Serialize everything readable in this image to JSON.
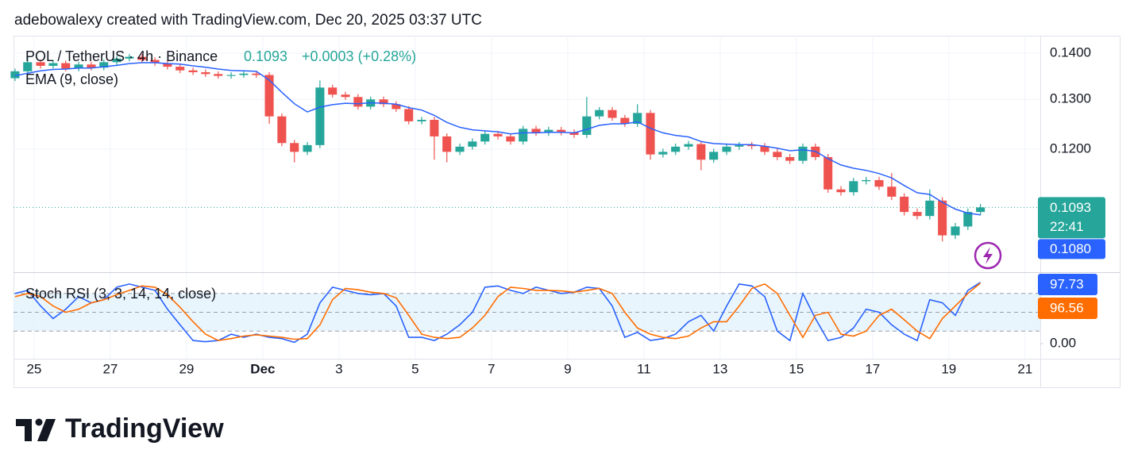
{
  "header": "adebowalexy created with TradingView.com, Dec 20, 2025 03:37 UTC",
  "footer_logo": "TradingView",
  "chart_data": [
    {
      "type": "candlestick",
      "title": "POL / TetherUS · 4h · Binance",
      "change": "+0.0003 (+0.28%)",
      "countdown": "22:41",
      "log_scale": true,
      "grid": true,
      "up_color": "#26a69a",
      "down_color": "#ef5350",
      "xlim": [
        -0.54,
        26.4
      ],
      "xticks": [
        {
          "value": 0,
          "label": "25"
        },
        {
          "value": 2,
          "label": "27"
        },
        {
          "value": 4,
          "label": "29"
        },
        {
          "value": 6,
          "label": "Dec"
        },
        {
          "value": 8,
          "label": "3"
        },
        {
          "value": 10,
          "label": "5"
        },
        {
          "value": 12,
          "label": "7"
        },
        {
          "value": 14,
          "label": "9"
        },
        {
          "value": 16,
          "label": "11"
        },
        {
          "value": 18,
          "label": "13"
        },
        {
          "value": 20,
          "label": "15"
        },
        {
          "value": 22,
          "label": "17"
        },
        {
          "value": 24,
          "label": "19"
        },
        {
          "value": 26,
          "label": "21"
        }
      ],
      "ylim": [
        0.0985,
        0.144
      ],
      "yticks": [
        {
          "value": 0.12,
          "label": "0.1200"
        },
        {
          "value": 0.13,
          "label": "0.1300"
        },
        {
          "value": 0.14,
          "label": "0.1400"
        }
      ],
      "x": [
        -0.5,
        -0.17,
        0.17,
        0.5,
        0.83,
        1.17,
        1.5,
        1.83,
        2.17,
        2.5,
        2.83,
        3.17,
        3.5,
        3.83,
        4.17,
        4.5,
        4.83,
        5.17,
        5.5,
        5.83,
        6.17,
        6.5,
        6.83,
        7.17,
        7.5,
        7.83,
        8.17,
        8.5,
        8.83,
        9.17,
        9.5,
        9.83,
        10.17,
        10.5,
        10.83,
        11.17,
        11.5,
        11.83,
        12.17,
        12.5,
        12.83,
        13.17,
        13.5,
        13.83,
        14.17,
        14.5,
        14.83,
        15.17,
        15.5,
        15.83,
        16.17,
        16.5,
        16.83,
        17.17,
        17.5,
        17.83,
        18.17,
        18.5,
        18.83,
        19.17,
        19.5,
        19.83,
        20.17,
        20.5,
        20.83,
        21.17,
        21.5,
        21.83,
        22.17,
        22.5,
        22.83,
        23.17,
        23.5,
        23.83,
        24.17,
        24.5,
        24.83
      ],
      "open": [
        0.1345,
        0.136,
        0.138,
        0.1372,
        0.1378,
        0.1366,
        0.1375,
        0.1368,
        0.138,
        0.1388,
        0.1392,
        0.1385,
        0.1378,
        0.137,
        0.1362,
        0.1358,
        0.1354,
        0.135,
        0.1352,
        0.1355,
        0.1352,
        0.1265,
        0.1212,
        0.1195,
        0.1208,
        0.1325,
        0.131,
        0.1305,
        0.1285,
        0.13,
        0.129,
        0.128,
        0.1255,
        0.1258,
        0.1225,
        0.1195,
        0.1205,
        0.1215,
        0.123,
        0.1225,
        0.1215,
        0.124,
        0.1232,
        0.1238,
        0.1233,
        0.1228,
        0.1265,
        0.1278,
        0.1262,
        0.125,
        0.1272,
        0.119,
        0.1195,
        0.1205,
        0.121,
        0.118,
        0.1195,
        0.1205,
        0.1208,
        0.1206,
        0.1195,
        0.1185,
        0.1178,
        0.1205,
        0.1185,
        0.1125,
        0.112,
        0.114,
        0.1142,
        0.113,
        0.1112,
        0.1085,
        0.1078,
        0.1105,
        0.1045,
        0.106,
        0.1085
      ],
      "high": [
        0.1366,
        0.1395,
        0.1386,
        0.1384,
        0.1384,
        0.1381,
        0.1381,
        0.1386,
        0.1394,
        0.1398,
        0.1398,
        0.1391,
        0.1384,
        0.1376,
        0.1368,
        0.1364,
        0.136,
        0.1358,
        0.1361,
        0.1361,
        0.1358,
        0.1271,
        0.1218,
        0.1214,
        0.134,
        0.1331,
        0.1316,
        0.1311,
        0.1306,
        0.1306,
        0.1296,
        0.1286,
        0.1264,
        0.1264,
        0.1231,
        0.1211,
        0.1221,
        0.1236,
        0.1236,
        0.1231,
        0.1246,
        0.1246,
        0.1244,
        0.1244,
        0.1239,
        0.1305,
        0.1284,
        0.1284,
        0.1268,
        0.129,
        0.1278,
        0.1201,
        0.1211,
        0.1216,
        0.1216,
        0.1201,
        0.1211,
        0.1214,
        0.1214,
        0.1212,
        0.1201,
        0.1191,
        0.1211,
        0.1211,
        0.1191,
        0.1131,
        0.1146,
        0.1148,
        0.1148,
        0.1155,
        0.1118,
        0.1091,
        0.1125,
        0.1111,
        0.1066,
        0.1091,
        0.1099
      ],
      "low": [
        0.1339,
        0.1354,
        0.1366,
        0.1366,
        0.136,
        0.136,
        0.1362,
        0.1362,
        0.1374,
        0.1382,
        0.1379,
        0.1372,
        0.1364,
        0.1356,
        0.1352,
        0.1348,
        0.1344,
        0.1344,
        0.1346,
        0.1346,
        0.125,
        0.1206,
        0.1175,
        0.1189,
        0.1202,
        0.1304,
        0.1299,
        0.1279,
        0.1279,
        0.1284,
        0.1274,
        0.1249,
        0.1249,
        0.118,
        0.1175,
        0.1189,
        0.1199,
        0.1209,
        0.1219,
        0.1209,
        0.1209,
        0.1226,
        0.1226,
        0.1227,
        0.1222,
        0.1222,
        0.1259,
        0.1256,
        0.1244,
        0.1244,
        0.118,
        0.1184,
        0.1189,
        0.1199,
        0.116,
        0.1174,
        0.1189,
        0.1199,
        0.12,
        0.1189,
        0.1179,
        0.1172,
        0.1172,
        0.1179,
        0.1119,
        0.1114,
        0.1114,
        0.1134,
        0.1124,
        0.1106,
        0.1079,
        0.1072,
        0.1072,
        0.1035,
        0.1039,
        0.1054,
        0.1079
      ],
      "close": [
        0.136,
        0.138,
        0.1372,
        0.1378,
        0.1366,
        0.1375,
        0.1368,
        0.138,
        0.1388,
        0.1392,
        0.1385,
        0.1378,
        0.137,
        0.1362,
        0.1358,
        0.1354,
        0.135,
        0.1352,
        0.1355,
        0.1352,
        0.1265,
        0.1212,
        0.1195,
        0.1208,
        0.1325,
        0.131,
        0.1305,
        0.1285,
        0.13,
        0.129,
        0.128,
        0.1255,
        0.1258,
        0.1225,
        0.1195,
        0.1205,
        0.1215,
        0.123,
        0.1225,
        0.1215,
        0.124,
        0.1232,
        0.1238,
        0.1233,
        0.1228,
        0.1265,
        0.1278,
        0.1262,
        0.125,
        0.1272,
        0.119,
        0.1195,
        0.1205,
        0.121,
        0.118,
        0.1195,
        0.1205,
        0.1208,
        0.1206,
        0.1195,
        0.1185,
        0.1178,
        0.1205,
        0.1185,
        0.1125,
        0.112,
        0.114,
        0.1142,
        0.113,
        0.1112,
        0.1085,
        0.1078,
        0.1105,
        0.1045,
        0.106,
        0.1085,
        0.1093
      ],
      "ema": {
        "name": "EMA (9, close)",
        "color": "#2962ff",
        "last_value_label": "0.1080",
        "values": [
          0.135,
          0.1356,
          0.1361,
          0.1364,
          0.1365,
          0.1367,
          0.1367,
          0.137,
          0.1373,
          0.1377,
          0.1379,
          0.1379,
          0.1377,
          0.1376,
          0.1372,
          0.1369,
          0.1365,
          0.1362,
          0.1361,
          0.136,
          0.1341,
          0.1315,
          0.1291,
          0.1274,
          0.1284,
          0.1289,
          0.1292,
          0.1291,
          0.1293,
          0.1292,
          0.129,
          0.1283,
          0.1278,
          0.1267,
          0.1253,
          0.1243,
          0.1238,
          0.1236,
          0.1234,
          0.123,
          0.1232,
          0.1232,
          0.1233,
          0.1233,
          0.1232,
          0.1239,
          0.1247,
          0.125,
          0.125,
          0.1254,
          0.1241,
          0.1232,
          0.1227,
          0.1224,
          0.1215,
          0.1211,
          0.121,
          0.1209,
          0.1209,
          0.1206,
          0.1202,
          0.1197,
          0.1199,
          0.1196,
          0.1182,
          0.117,
          0.1164,
          0.116,
          0.1154,
          0.1146,
          0.1132,
          0.1119,
          0.1116,
          0.1102,
          0.109,
          0.1083,
          0.108
        ]
      }
    },
    {
      "type": "line",
      "title": "Stoch RSI (3, 3, 14, 14, close)",
      "ylim": [
        0,
        100
      ],
      "yticks": [
        {
          "value": 0,
          "label": "0.00"
        }
      ],
      "levels": [
        20,
        50,
        80
      ],
      "band_color": "#e3f2fd",
      "x": [
        -0.5,
        -0.17,
        0.17,
        0.5,
        0.83,
        1.17,
        1.5,
        1.83,
        2.17,
        2.5,
        2.83,
        3.17,
        3.5,
        3.83,
        4.17,
        4.5,
        4.83,
        5.17,
        5.5,
        5.83,
        6.17,
        6.5,
        6.83,
        7.17,
        7.5,
        7.83,
        8.17,
        8.5,
        8.83,
        9.17,
        9.5,
        9.83,
        10.17,
        10.5,
        10.83,
        11.17,
        11.5,
        11.83,
        12.17,
        12.5,
        12.83,
        13.17,
        13.5,
        13.83,
        14.17,
        14.5,
        14.83,
        15.17,
        15.5,
        15.83,
        16.17,
        16.5,
        16.83,
        17.17,
        17.5,
        17.83,
        18.17,
        18.5,
        18.83,
        19.17,
        19.5,
        19.83,
        20.17,
        20.5,
        20.83,
        21.17,
        21.5,
        21.83,
        22.17,
        22.5,
        22.83,
        23.17,
        23.5,
        23.83,
        24.17,
        24.5,
        24.83
      ],
      "series": [
        {
          "color": "#2962ff",
          "values": [
            80,
            85,
            60,
            40,
            55,
            75,
            65,
            70,
            90,
            95,
            90,
            85,
            55,
            30,
            5,
            3,
            5,
            15,
            10,
            15,
            10,
            8,
            2,
            15,
            65,
            90,
            85,
            80,
            78,
            80,
            60,
            10,
            10,
            5,
            15,
            30,
            50,
            90,
            92,
            85,
            80,
            90,
            85,
            80,
            82,
            90,
            88,
            60,
            10,
            18,
            5,
            8,
            15,
            35,
            45,
            20,
            60,
            95,
            92,
            75,
            20,
            5,
            80,
            40,
            5,
            10,
            25,
            55,
            50,
            30,
            15,
            5,
            70,
            65,
            45,
            85,
            97.73
          ]
        },
        {
          "color": "#ff6d00",
          "values": [
            75,
            80,
            75,
            60,
            50,
            55,
            65,
            70,
            78,
            85,
            92,
            90,
            78,
            58,
            35,
            15,
            5,
            8,
            12,
            14,
            12,
            10,
            7,
            8,
            30,
            70,
            88,
            86,
            82,
            80,
            73,
            45,
            15,
            10,
            8,
            10,
            25,
            45,
            75,
            90,
            88,
            85,
            85,
            84,
            82,
            85,
            88,
            80,
            50,
            25,
            15,
            10,
            8,
            12,
            25,
            35,
            35,
            60,
            88,
            95,
            80,
            45,
            10,
            45,
            50,
            15,
            12,
            20,
            45,
            55,
            38,
            20,
            8,
            40,
            60,
            80,
            96.56
          ]
        }
      ]
    }
  ]
}
